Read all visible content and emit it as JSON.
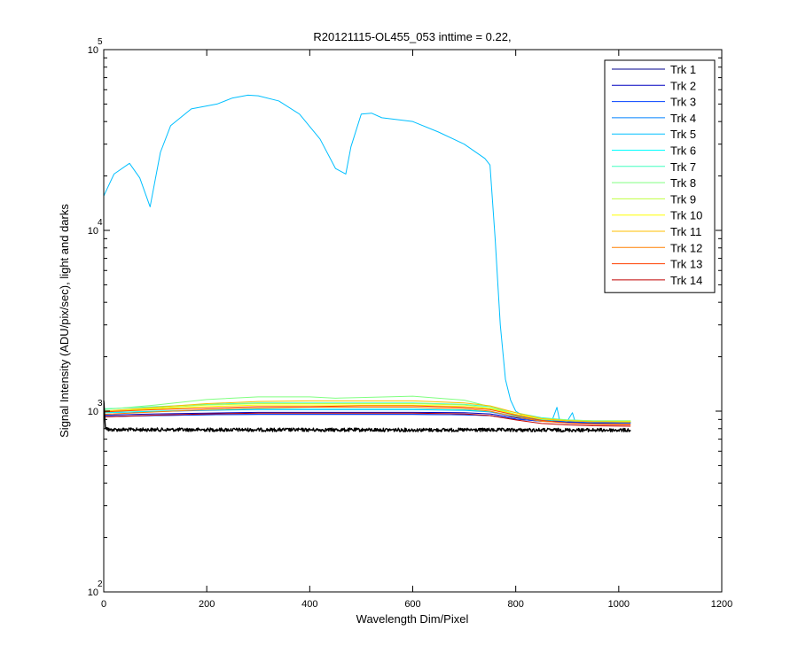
{
  "chart_data": {
    "type": "line",
    "title": "R20121115-OL455_053 inttime = 0.22,",
    "xlabel": "Wavelength Dim/Pixel",
    "ylabel": "Signal Intensity (ADU/pix/sec), light and darks",
    "xlim": [
      0,
      1200
    ],
    "ylim": [
      100,
      100000
    ],
    "yscale": "log",
    "xticks": [
      "0",
      "200",
      "400",
      "600",
      "800",
      "1000",
      "1200"
    ],
    "yticks": [
      {
        "base": "10",
        "exp": "2"
      },
      {
        "base": "10",
        "exp": "3"
      },
      {
        "base": "10",
        "exp": "4"
      },
      {
        "base": "10",
        "exp": "5"
      }
    ],
    "legend_position": "top-right",
    "grid": false,
    "series": [
      {
        "name": "Trk 1",
        "color": "#00008f",
        "x": [
          0,
          100,
          200,
          300,
          400,
          500,
          600,
          700,
          750,
          800,
          850,
          900,
          950,
          1023
        ],
        "y": [
          930,
          945,
          955,
          960,
          960,
          960,
          960,
          955,
          945,
          905,
          880,
          870,
          860,
          860
        ]
      },
      {
        "name": "Trk 2",
        "color": "#0000c0",
        "x": [
          0,
          100,
          200,
          300,
          400,
          500,
          600,
          700,
          750,
          800,
          850,
          900,
          950,
          1023
        ],
        "y": [
          950,
          965,
          975,
          985,
          985,
          985,
          985,
          980,
          965,
          920,
          890,
          875,
          865,
          865
        ]
      },
      {
        "name": "Trk 3",
        "color": "#0040ff",
        "x": [
          0,
          100,
          200,
          300,
          400,
          500,
          600,
          700,
          750,
          800,
          850,
          900,
          950,
          1023
        ],
        "y": [
          935,
          945,
          955,
          960,
          960,
          960,
          960,
          955,
          945,
          905,
          880,
          870,
          860,
          860
        ]
      },
      {
        "name": "Trk 4",
        "color": "#0080ff",
        "x": [
          0,
          100,
          200,
          300,
          400,
          500,
          600,
          700,
          750,
          800,
          850,
          900,
          950,
          1023
        ],
        "y": [
          980,
          995,
          1010,
          1020,
          1020,
          1020,
          1020,
          1010,
          990,
          935,
          895,
          880,
          870,
          870
        ]
      },
      {
        "name": "Trk 5",
        "color": "#00bfff",
        "x": [
          0,
          20,
          50,
          70,
          90,
          110,
          130,
          170,
          220,
          250,
          280,
          300,
          340,
          380,
          420,
          450,
          470,
          480,
          500,
          520,
          540,
          600,
          650,
          700,
          740,
          750,
          760,
          770,
          780,
          790,
          800,
          820,
          850,
          870,
          880,
          885,
          890,
          900,
          910,
          915,
          920,
          950,
          1000,
          1023
        ],
        "y": [
          15500,
          20500,
          23500,
          19500,
          13500,
          27000,
          38000,
          47000,
          50000,
          54000,
          56000,
          55500,
          52000,
          44000,
          32000,
          22000,
          20500,
          29000,
          44000,
          44500,
          42000,
          40000,
          35000,
          30000,
          25000,
          23000,
          9000,
          3000,
          1500,
          1150,
          1000,
          920,
          890,
          880,
          1050,
          890,
          885,
          880,
          980,
          880,
          880,
          880,
          870,
          870
        ]
      },
      {
        "name": "Trk 6",
        "color": "#00ffff",
        "x": [
          0,
          100,
          200,
          300,
          400,
          500,
          600,
          700,
          750,
          800,
          850,
          900,
          950,
          1023
        ],
        "y": [
          980,
          1000,
          1015,
          1025,
          1025,
          1025,
          1025,
          1015,
          995,
          940,
          900,
          885,
          875,
          875
        ]
      },
      {
        "name": "Trk 7",
        "color": "#40ffbf",
        "x": [
          0,
          100,
          200,
          300,
          400,
          500,
          600,
          700,
          750,
          800,
          850,
          900,
          950,
          1023
        ],
        "y": [
          1030,
          1060,
          1090,
          1110,
          1110,
          1110,
          1110,
          1090,
          1060,
          980,
          920,
          895,
          885,
          885
        ]
      },
      {
        "name": "Trk 8",
        "color": "#80ff80",
        "x": [
          0,
          100,
          200,
          300,
          400,
          450,
          500,
          600,
          700,
          750,
          800,
          850,
          900,
          950,
          1023
        ],
        "y": [
          1020,
          1080,
          1160,
          1200,
          1200,
          1180,
          1190,
          1210,
          1150,
          1060,
          960,
          910,
          895,
          885,
          885
        ]
      },
      {
        "name": "Trk 9",
        "color": "#bfff40",
        "x": [
          0,
          100,
          200,
          300,
          400,
          500,
          600,
          700,
          750,
          800,
          850,
          900,
          950,
          1023
        ],
        "y": [
          1000,
          1040,
          1080,
          1100,
          1100,
          1100,
          1100,
          1080,
          1040,
          960,
          910,
          890,
          880,
          880
        ]
      },
      {
        "name": "Trk 10",
        "color": "#ffff00",
        "x": [
          0,
          100,
          200,
          300,
          400,
          500,
          600,
          700,
          750,
          800,
          850,
          900,
          950,
          1023
        ],
        "y": [
          990,
          1030,
          1060,
          1080,
          1080,
          1080,
          1080,
          1060,
          1030,
          960,
          905,
          885,
          875,
          875
        ]
      },
      {
        "name": "Trk 11",
        "color": "#ffbf00",
        "x": [
          0,
          100,
          200,
          300,
          400,
          500,
          600,
          700,
          750,
          800,
          850,
          900,
          950,
          1023
        ],
        "y": [
          1000,
          1050,
          1100,
          1130,
          1140,
          1140,
          1140,
          1110,
          1070,
          980,
          910,
          885,
          875,
          870
        ]
      },
      {
        "name": "Trk 12",
        "color": "#ff8000",
        "x": [
          0,
          100,
          200,
          300,
          400,
          500,
          600,
          700,
          750,
          800,
          850,
          900,
          950,
          1023
        ],
        "y": [
          960,
          990,
          1020,
          1040,
          1050,
          1050,
          1050,
          1030,
          1000,
          930,
          880,
          860,
          850,
          845
        ]
      },
      {
        "name": "Trk 13",
        "color": "#ff4000",
        "x": [
          0,
          100,
          200,
          300,
          400,
          500,
          600,
          700,
          750,
          800,
          850,
          900,
          950,
          1023
        ],
        "y": [
          990,
          1020,
          1040,
          1060,
          1060,
          1070,
          1070,
          1050,
          1020,
          950,
          890,
          860,
          845,
          840
        ]
      },
      {
        "name": "Trk 14",
        "color": "#c00000",
        "x": [
          0,
          100,
          200,
          300,
          400,
          500,
          600,
          700,
          750,
          800,
          850,
          900,
          950,
          1023
        ],
        "y": [
          930,
          950,
          965,
          975,
          975,
          975,
          975,
          965,
          945,
          895,
          855,
          840,
          830,
          825
        ]
      },
      {
        "color": "#000000",
        "x": [
          0,
          3,
          6,
          10,
          1023
        ],
        "y": [
          1150,
          820,
          800,
          790,
          785
        ],
        "noise": true
      }
    ]
  }
}
